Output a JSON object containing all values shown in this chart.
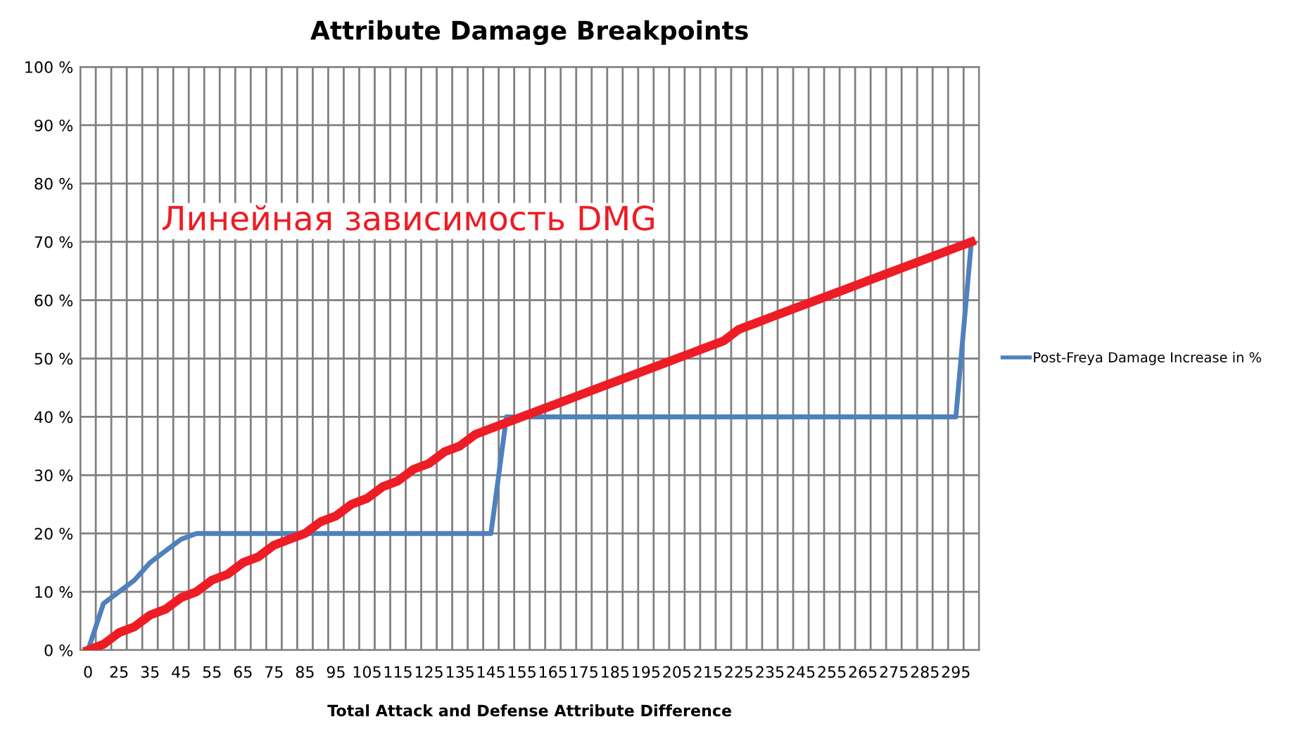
{
  "chart_data": {
    "type": "line",
    "title": "Attribute Damage Breakpoints",
    "xlabel": "Total Attack and Defense Attribute Difference",
    "categories": [
      "0",
      null,
      "25",
      null,
      "35",
      null,
      "45",
      null,
      "55",
      null,
      "65",
      null,
      "75",
      null,
      "85",
      null,
      "95",
      null,
      "105",
      null,
      "115",
      null,
      "125",
      null,
      "135",
      null,
      "145",
      null,
      "155",
      null,
      "165",
      null,
      "175",
      null,
      "185",
      null,
      "195",
      null,
      "205",
      null,
      "215",
      null,
      "225",
      null,
      "235",
      null,
      "245",
      null,
      "255",
      null,
      "265",
      null,
      "275",
      null,
      "285",
      null,
      "295",
      null
    ],
    "series": [
      {
        "name": "Post-Freya Damage Increase in %",
        "color": "#4f81bd",
        "values": [
          0,
          8,
          10,
          12,
          15,
          17,
          19,
          20,
          20,
          20,
          20,
          20,
          20,
          20,
          20,
          20,
          20,
          20,
          20,
          20,
          20,
          20,
          20,
          20,
          20,
          20,
          20,
          40,
          40,
          40,
          40,
          40,
          40,
          40,
          40,
          40,
          40,
          40,
          40,
          40,
          40,
          40,
          40,
          40,
          40,
          40,
          40,
          40,
          40,
          40,
          40,
          40,
          40,
          40,
          40,
          40,
          40,
          70
        ]
      },
      {
        "color": "#ee1c25",
        "values": [
          0,
          1,
          3,
          4,
          6,
          7,
          9,
          10,
          12,
          13,
          15,
          16,
          18,
          19,
          20,
          22,
          23,
          25,
          26,
          28,
          29,
          31,
          32,
          34,
          35,
          37,
          38,
          39,
          40,
          41,
          42,
          43,
          44,
          45,
          46,
          47,
          48,
          49,
          50,
          51,
          52,
          53,
          55,
          56,
          57,
          58,
          59,
          60,
          61,
          62,
          63,
          64,
          65,
          66,
          67,
          68,
          69,
          70
        ]
      }
    ],
    "ylim": [
      0,
      100
    ],
    "yticks": [
      {
        "value": 0,
        "label": "0 %"
      },
      {
        "value": 10,
        "label": "10 %"
      },
      {
        "value": 20,
        "label": "20 %"
      },
      {
        "value": 30,
        "label": "30 %"
      },
      {
        "value": 40,
        "label": "40 %"
      },
      {
        "value": 50,
        "label": "50 %"
      },
      {
        "value": 60,
        "label": "60 %"
      },
      {
        "value": 70,
        "label": "70 %"
      },
      {
        "value": 80,
        "label": "80 %"
      },
      {
        "value": 90,
        "label": "90 %"
      },
      {
        "value": 100,
        "label": "100 %"
      }
    ],
    "annotations": [
      "Линейная зависимость DMG"
    ],
    "grid": true,
    "legend": "right",
    "marker": "none",
    "line_style": "solid"
  }
}
